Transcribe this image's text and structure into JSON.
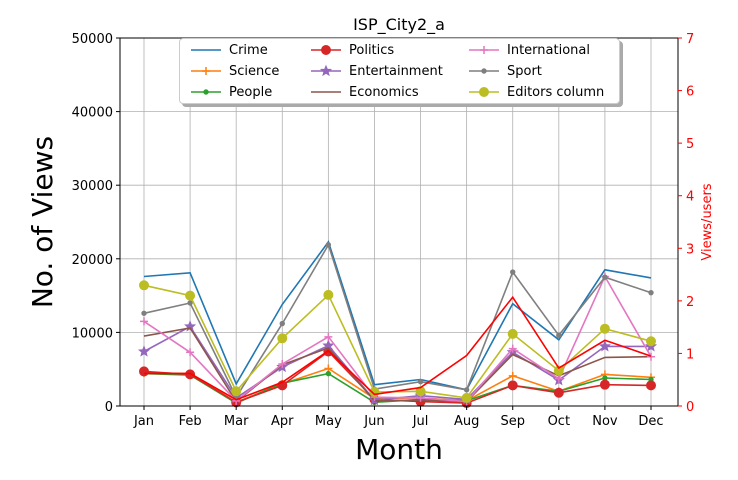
{
  "chart_data": {
    "type": "line",
    "title": "ISP_City2_a",
    "xlabel": "Month",
    "ylabel": "No. of Views",
    "y2label": "Views/users",
    "categories": [
      "Jan",
      "Feb",
      "Mar",
      "Apr",
      "May",
      "Jun",
      "Jul",
      "Aug",
      "Sep",
      "Oct",
      "Nov",
      "Dec"
    ],
    "ylim": [
      0,
      50000
    ],
    "y2lim": [
      0,
      7
    ],
    "yticks": [
      "0",
      "10000",
      "20000",
      "30000",
      "40000",
      "50000"
    ],
    "y2ticks": [
      "0",
      "1",
      "2",
      "3",
      "4",
      "5",
      "6",
      "7"
    ],
    "grid": true,
    "legend_position": "top-center",
    "series": [
      {
        "name": "Crime",
        "color": "#1f77b4",
        "marker": "none",
        "values": [
          17600,
          18100,
          3000,
          13800,
          22300,
          2900,
          3600,
          2200,
          13900,
          9000,
          18500,
          17400
        ]
      },
      {
        "name": "Science",
        "color": "#ff7f0e",
        "marker": "plus",
        "values": [
          4500,
          4400,
          500,
          3000,
          5100,
          1000,
          1100,
          700,
          4100,
          2000,
          4300,
          3900
        ]
      },
      {
        "name": "People",
        "color": "#2ca02c",
        "marker": "dot",
        "values": [
          4400,
          4200,
          400,
          3100,
          4400,
          500,
          900,
          700,
          2800,
          2000,
          3800,
          3600
        ]
      },
      {
        "name": "Politics",
        "color": "#d62728",
        "marker": "circle",
        "values": [
          4700,
          4300,
          500,
          2800,
          7400,
          900,
          600,
          400,
          2800,
          1800,
          2900,
          2800
        ]
      },
      {
        "name": "Entertainment",
        "color": "#9467bd",
        "marker": "star",
        "values": [
          7400,
          10800,
          1100,
          5300,
          8200,
          800,
          1400,
          900,
          7300,
          3500,
          8100,
          8100
        ]
      },
      {
        "name": "Economics",
        "color": "#8c564b",
        "marker": "none",
        "values": [
          9500,
          10600,
          600,
          5600,
          7900,
          700,
          800,
          600,
          7000,
          4100,
          6600,
          6700
        ]
      },
      {
        "name": "International",
        "color": "#e377c2",
        "marker": "plus",
        "values": [
          11500,
          7300,
          700,
          5700,
          9400,
          1200,
          1100,
          600,
          7800,
          3700,
          17600,
          6700
        ]
      },
      {
        "name": "Sport",
        "color": "#7f7f7f",
        "marker": "dot",
        "values": [
          12600,
          14000,
          1200,
          11200,
          21900,
          2300,
          3300,
          2200,
          18200,
          9600,
          17500,
          15400
        ]
      },
      {
        "name": "Editors column",
        "color": "#bcbd22",
        "marker": "circle",
        "values": [
          16400,
          15000,
          2000,
          9200,
          15100,
          1900,
          2000,
          1100,
          9800,
          4800,
          10500,
          8800
        ]
      }
    ],
    "secondary_series": {
      "name": "Views/users",
      "color": "#ff0000",
      "marker": "none",
      "values": [
        0.62,
        0.62,
        0.12,
        0.45,
        1.05,
        0.22,
        0.35,
        0.96,
        2.07,
        0.72,
        1.25,
        0.95
      ]
    }
  }
}
